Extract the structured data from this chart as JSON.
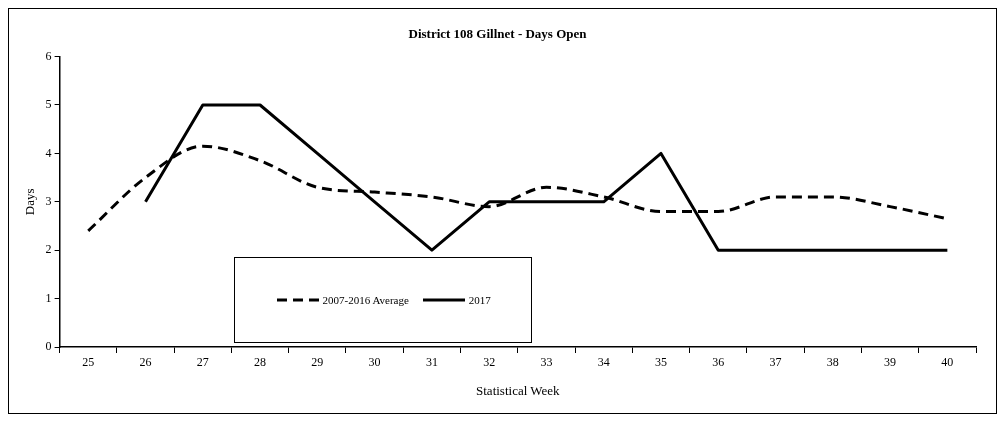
{
  "chart_data": {
    "type": "line",
    "title": "District 108 Gillnet - Days Open",
    "xlabel": "Statistical Week",
    "ylabel": "Days",
    "categories": [
      "25",
      "26",
      "27",
      "28",
      "29",
      "30",
      "31",
      "32",
      "33",
      "34",
      "35",
      "36",
      "37",
      "38",
      "39",
      "40"
    ],
    "series": [
      {
        "name": "2007-2016 Average",
        "color": "#000000",
        "line_style": "dashed",
        "values": [
          2.4,
          3.5,
          4.15,
          3.85,
          3.3,
          3.2,
          3.1,
          2.9,
          3.3,
          3.1,
          2.8,
          2.8,
          3.1,
          3.1,
          2.9,
          2.65
        ]
      },
      {
        "name": "2017",
        "color": "#000000",
        "line_style": "solid",
        "values": [
          null,
          3,
          5,
          5,
          4,
          3,
          2,
          3,
          3,
          3,
          4,
          2,
          2,
          2,
          2,
          2
        ]
      }
    ],
    "ylim": [
      0,
      6
    ],
    "yticks": [
      0,
      1,
      2,
      3,
      4,
      5,
      6
    ],
    "grid": false,
    "legend": "bottom left",
    "marker": "none"
  }
}
